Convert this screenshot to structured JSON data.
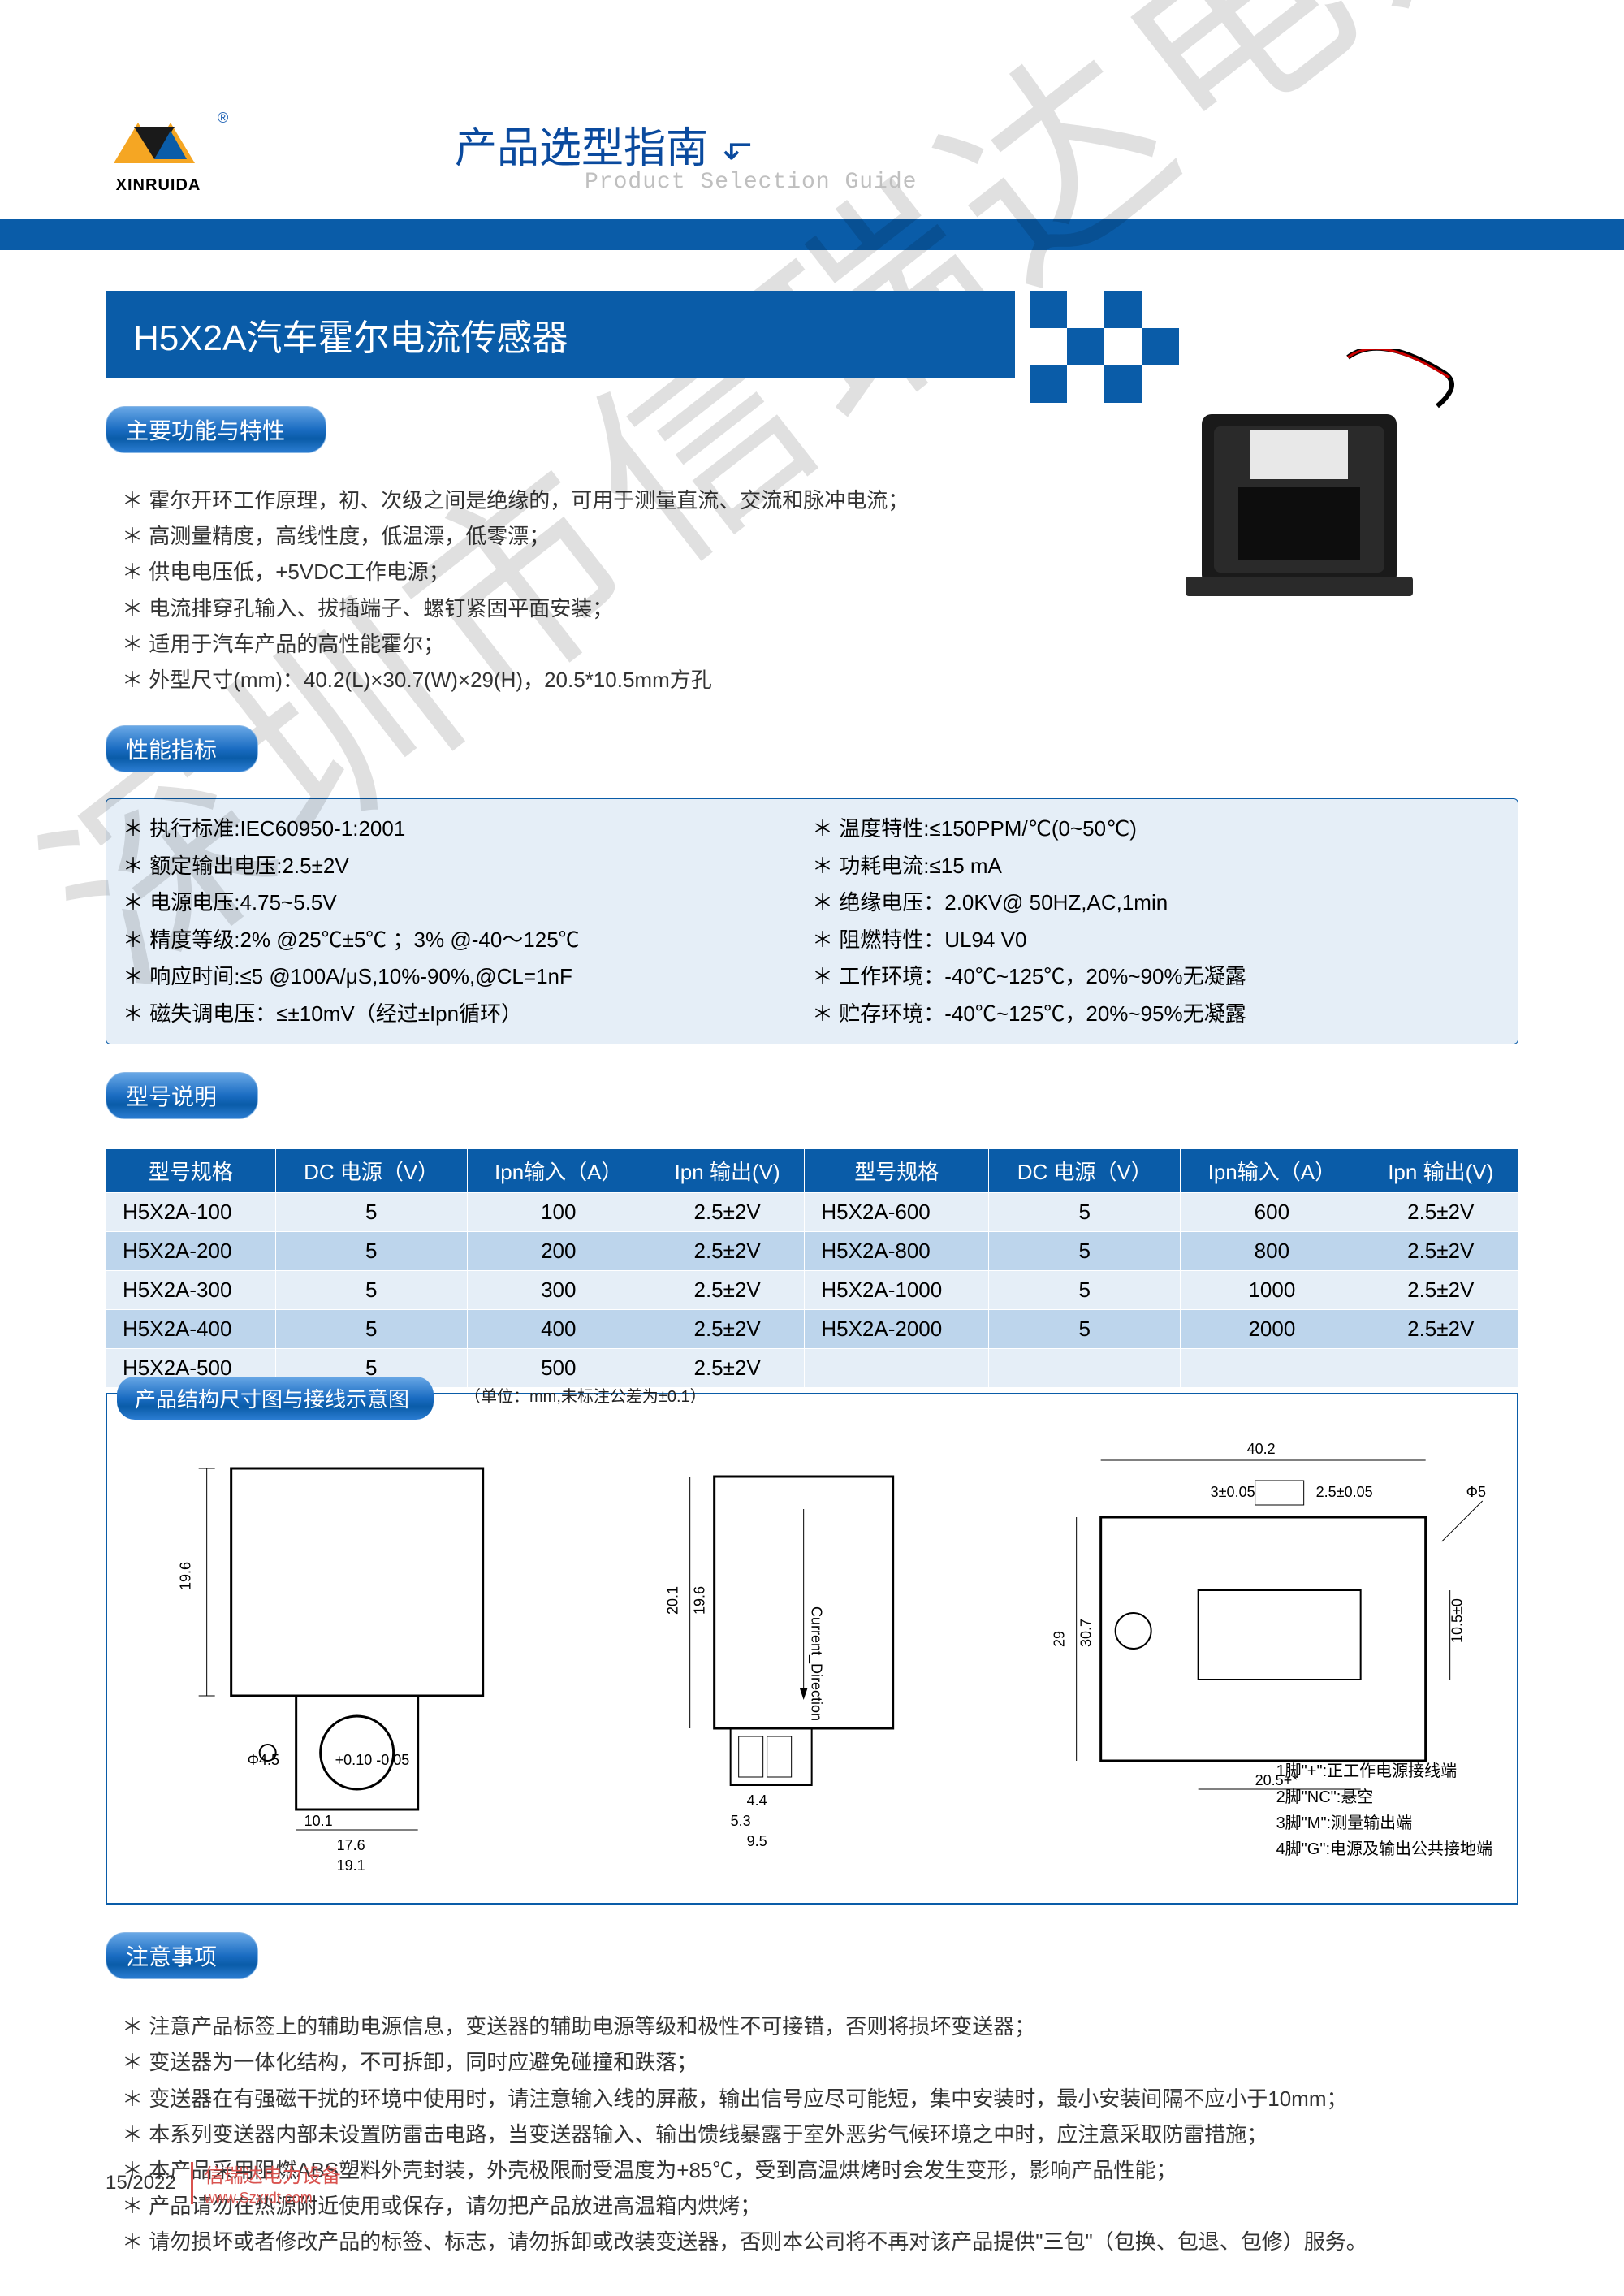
{
  "brand": "XINRUIDA",
  "header": {
    "cn": "产品选型指南",
    "en": "Product Selection Guide",
    "arrow": "↘"
  },
  "product_title": "H5X2A汽车霍尔电流传感器",
  "watermark": "深圳市信瑞达电力设备",
  "sections": {
    "features_title": "主要功能与特性",
    "features": [
      "霍尔开环工作原理，初、次级之间是绝缘的，可用于测量直流、交流和脉冲电流；",
      "高测量精度，高线性度，低温漂，低零漂；",
      "供电电压低，+5VDC工作电源；",
      "电流排穿孔输入、拔插端子、螺钉紧固平面安装；",
      "适用于汽车产品的高性能霍尔；",
      "外型尺寸(mm)：40.2(L)×30.7(W)×29(H)，20.5*10.5mm方孔"
    ],
    "specs_title": "性能指标",
    "specs_left": [
      "执行标准:IEC60950-1:2001",
      "额定输出电压:2.5±2V",
      "电源电压:4.75~5.5V",
      "精度等级:2%  @25℃±5℃ ；3%  @-40～125℃",
      "响应时间:≤5 @100A/μS,10%-90%,@CL=1nF",
      "磁失调电压：≤±10mV（经过±Ipn循环）"
    ],
    "specs_right": [
      "温度特性:≤150PPM/℃(0~50℃)",
      "功耗电流:≤15 mA",
      "绝缘电压：2.0KV@ 50HZ,AC,1min",
      "阻燃特性：UL94 V0",
      "工作环境：-40℃~125℃，20%~90%无凝露",
      "贮存环境：-40℃~125℃，20%~95%无凝露"
    ],
    "model_title": "型号说明",
    "diagram_title": "产品结构尺寸图与接线示意图",
    "diagram_note": "（单位：mm,未标注公差为±0.1）",
    "pin_labels": [
      "1脚\"+\":正工作电源接线端",
      "2脚\"NC\":悬空",
      "3脚\"M\":测量输出端",
      "4脚\"G\":电源及输出公共接地端"
    ],
    "cautions_title": "注意事项",
    "cautions": [
      "注意产品标签上的辅助电源信息，变送器的辅助电源等级和极性不可接错，否则将损坏变送器；",
      "变送器为一体化结构，不可拆卸，同时应避免碰撞和跌落；",
      "变送器在有强磁干扰的环境中使用时，请注意输入线的屏蔽，输出信号应尽可能短，集中安装时，最小安装间隔不应小于10mm；",
      "本系列变送器内部未设置防雷击电路，当变送器输入、输出馈线暴露于室外恶劣气候环境之中时，应注意采取防雷措施；",
      "本产品采用阻燃ABS塑料外壳封装，外壳极限耐受温度为+85℃，受到高温烘烤时会发生变形，影响产品性能；",
      "产品请勿在热源附近使用或保存，请勿把产品放进高温箱内烘烤；",
      "请勿损坏或者修改产品的标签、标志，请勿拆卸或改装变送器，否则本公司将不再对该产品提供\"三包\"（包换、包退、包修）服务。"
    ]
  },
  "table": {
    "headers": [
      "型号规格",
      "DC 电源（V）",
      "Ipn输入（A）",
      "Ipn 输出(V)",
      "型号规格",
      "DC 电源（V）",
      "Ipn输入（A）",
      "Ipn 输出(V)"
    ],
    "rows": [
      [
        "H5X2A-100",
        "5",
        "100",
        "2.5±2V",
        "H5X2A-600",
        "5",
        "600",
        "2.5±2V"
      ],
      [
        "H5X2A-200",
        "5",
        "200",
        "2.5±2V",
        "H5X2A-800",
        "5",
        "800",
        "2.5±2V"
      ],
      [
        "H5X2A-300",
        "5",
        "300",
        "2.5±2V",
        "H5X2A-1000",
        "5",
        "1000",
        "2.5±2V"
      ],
      [
        "H5X2A-400",
        "5",
        "400",
        "2.5±2V",
        "H5X2A-2000",
        "5",
        "2000",
        "2.5±2V"
      ],
      [
        "H5X2A-500",
        "5",
        "500",
        "2.5±2V",
        "",
        "",
        "",
        ""
      ]
    ]
  },
  "dimensions": {
    "d1": "19.6",
    "d2": "Φ4.5",
    "d3": "10.1",
    "d4": "17.6",
    "d5": "19.1",
    "d6": "20.1",
    "d7": "19.6",
    "d8": "4.4",
    "d9": "5.3",
    "d10": "9.5",
    "d11": "40.2",
    "d12": "3±0.05",
    "d13": "2.5±0.05",
    "d14": "29",
    "d15": "30.7",
    "d16": "10.5±0",
    "d17": "20.5+*",
    "d18": "Φ5",
    "current": "Current_Direction",
    "tol": "+0.10\n-0.05"
  },
  "footer": {
    "page": "15/2022",
    "company": "信瑞达电力设备",
    "url": "www.Szxrdt.com"
  },
  "colors": {
    "primary": "#0a5ca8",
    "pill_lite": "#69a8e6",
    "row_odd": "#e5eef7",
    "row_even": "#bdd5ec",
    "accent_red": "#d9534f"
  }
}
